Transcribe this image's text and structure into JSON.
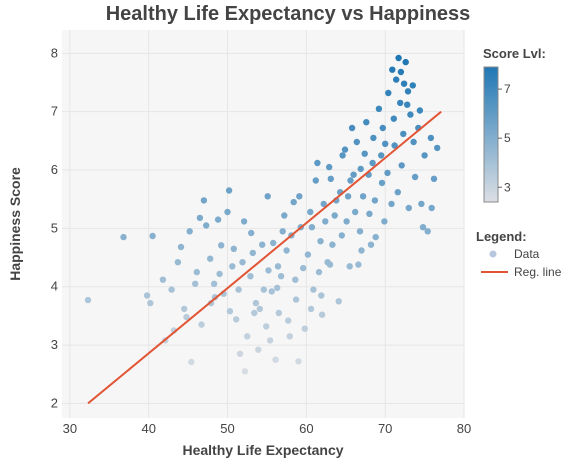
{
  "chart_data": {
    "type": "scatter",
    "title": "Healthy Life Expectancy vs Happiness",
    "xlabel": "Healthy Life Expectancy",
    "ylabel": "Happiness Score",
    "xlim": [
      29,
      80
    ],
    "ylim": [
      1.75,
      8.4
    ],
    "xticks": [
      30,
      40,
      50,
      60,
      70,
      80
    ],
    "yticks": [
      2,
      3,
      4,
      5,
      6,
      7,
      8
    ],
    "grid": true,
    "colorbar": {
      "title": "Score Lvl:",
      "range": [
        2.4,
        7.9
      ],
      "ticks": [
        3,
        5,
        7
      ],
      "colors": [
        "#dcdfe4",
        "#1f77b4"
      ]
    },
    "legend": {
      "title": "Legend:",
      "placement": "right",
      "items": [
        {
          "label": "Data",
          "kind": "marker",
          "color": "#b7c7de"
        },
        {
          "label": "Reg. line",
          "kind": "line",
          "color": "#e15535"
        }
      ]
    },
    "regression_line": {
      "x": [
        32.3,
        77.1
      ],
      "y": [
        2.0,
        7.0
      ],
      "color": "#e15535"
    },
    "series": [
      {
        "name": "Data",
        "points": [
          [
            32.3,
            3.77
          ],
          [
            36.8,
            4.85
          ],
          [
            40.5,
            4.87
          ],
          [
            41.8,
            4.12
          ],
          [
            39.8,
            3.85
          ],
          [
            40.2,
            3.72
          ],
          [
            42.1,
            3.08
          ],
          [
            43.2,
            3.25
          ],
          [
            44.5,
            3.62
          ],
          [
            45.4,
            2.71
          ],
          [
            44.1,
            4.68
          ],
          [
            45.2,
            4.95
          ],
          [
            46.1,
            4.25
          ],
          [
            47.3,
            5.05
          ],
          [
            47.8,
            4.48
          ],
          [
            48.4,
            3.82
          ],
          [
            49.2,
            4.71
          ],
          [
            50.0,
            5.28
          ],
          [
            50.6,
            4.35
          ],
          [
            51.1,
            3.44
          ],
          [
            51.6,
            2.85
          ],
          [
            52.2,
            2.55
          ],
          [
            52.1,
            5.12
          ],
          [
            52.9,
            4.18
          ],
          [
            53.4,
            3.55
          ],
          [
            53.9,
            2.92
          ],
          [
            54.4,
            4.72
          ],
          [
            55.1,
            5.55
          ],
          [
            55.6,
            3.92
          ],
          [
            56.1,
            2.75
          ],
          [
            56.4,
            4.35
          ],
          [
            57.2,
            5.22
          ],
          [
            57.7,
            3.42
          ],
          [
            58.1,
            4.88
          ],
          [
            58.6,
            4.12
          ],
          [
            59.1,
            5.55
          ],
          [
            59.8,
            3.28
          ],
          [
            60.2,
            4.55
          ],
          [
            60.7,
            5.02
          ],
          [
            61.2,
            5.82
          ],
          [
            61.6,
            4.25
          ],
          [
            62.0,
            3.52
          ],
          [
            62.4,
            5.12
          ],
          [
            62.9,
            6.05
          ],
          [
            63.3,
            4.72
          ],
          [
            63.8,
            5.48
          ],
          [
            64.1,
            3.75
          ],
          [
            64.6,
            6.25
          ],
          [
            65.1,
            5.12
          ],
          [
            65.5,
            4.35
          ],
          [
            66.0,
            5.92
          ],
          [
            66.4,
            6.48
          ],
          [
            66.8,
            4.95
          ],
          [
            67.2,
            5.55
          ],
          [
            67.6,
            6.82
          ],
          [
            68.0,
            5.25
          ],
          [
            68.4,
            6.12
          ],
          [
            68.8,
            4.85
          ],
          [
            69.2,
            7.05
          ],
          [
            69.6,
            5.78
          ],
          [
            70.0,
            6.45
          ],
          [
            70.4,
            7.32
          ],
          [
            70.8,
            5.42
          ],
          [
            71.1,
            6.88
          ],
          [
            71.4,
            7.55
          ],
          [
            71.7,
            7.92
          ],
          [
            72.0,
            7.68
          ],
          [
            72.3,
            6.62
          ],
          [
            72.6,
            7.85
          ],
          [
            72.9,
            7.35
          ],
          [
            73.2,
            6.95
          ],
          [
            73.5,
            7.45
          ],
          [
            73.8,
            5.88
          ],
          [
            74.2,
            6.72
          ],
          [
            74.6,
            5.42
          ],
          [
            75.0,
            6.25
          ],
          [
            75.4,
            4.95
          ],
          [
            75.8,
            6.55
          ],
          [
            76.2,
            5.85
          ],
          [
            76.6,
            6.38
          ],
          [
            48.3,
            4.05
          ],
          [
            49.5,
            3.88
          ],
          [
            50.8,
            4.65
          ],
          [
            51.9,
            4.42
          ],
          [
            53.0,
            4.92
          ],
          [
            54.1,
            3.62
          ],
          [
            55.2,
            4.28
          ],
          [
            56.3,
            3.98
          ],
          [
            57.5,
            4.62
          ],
          [
            58.7,
            3.78
          ],
          [
            59.6,
            4.32
          ],
          [
            60.9,
            3.95
          ],
          [
            61.8,
            4.78
          ],
          [
            62.7,
            4.42
          ],
          [
            63.6,
            5.22
          ],
          [
            64.5,
            4.88
          ],
          [
            65.3,
            5.55
          ],
          [
            66.2,
            5.28
          ],
          [
            67.0,
            4.62
          ],
          [
            67.9,
            5.92
          ],
          [
            68.7,
            5.48
          ],
          [
            69.5,
            6.25
          ],
          [
            70.3,
            5.95
          ],
          [
            71.2,
            6.42
          ],
          [
            72.1,
            6.08
          ],
          [
            72.8,
            7.12
          ],
          [
            73.6,
            6.48
          ],
          [
            74.4,
            7.02
          ],
          [
            65.8,
            6.72
          ],
          [
            64.9,
            6.35
          ],
          [
            63.1,
            5.85
          ],
          [
            62.2,
            5.42
          ],
          [
            61.4,
            6.12
          ],
          [
            60.5,
            5.28
          ],
          [
            59.3,
            5.02
          ],
          [
            58.4,
            5.45
          ],
          [
            57.0,
            4.95
          ],
          [
            56.8,
            4.18
          ],
          [
            55.8,
            4.75
          ],
          [
            54.9,
            3.32
          ],
          [
            53.6,
            3.72
          ],
          [
            52.5,
            3.15
          ],
          [
            51.4,
            3.95
          ],
          [
            50.3,
            3.58
          ],
          [
            49.0,
            4.22
          ],
          [
            47.9,
            3.72
          ],
          [
            46.7,
            3.35
          ],
          [
            45.9,
            4.05
          ],
          [
            44.8,
            3.48
          ],
          [
            43.7,
            4.42
          ],
          [
            42.9,
            3.95
          ],
          [
            47.0,
            5.48
          ],
          [
            48.8,
            5.15
          ],
          [
            50.2,
            5.65
          ],
          [
            46.5,
            5.18
          ],
          [
            66.6,
            4.38
          ],
          [
            68.2,
            4.72
          ],
          [
            69.9,
            5.12
          ],
          [
            71.6,
            5.62
          ],
          [
            73.0,
            5.35
          ],
          [
            74.8,
            5.02
          ],
          [
            75.9,
            5.35
          ],
          [
            70.9,
            7.72
          ],
          [
            72.4,
            7.48
          ],
          [
            71.9,
            7.15
          ],
          [
            69.7,
            6.72
          ],
          [
            68.5,
            6.55
          ],
          [
            67.4,
            6.28
          ],
          [
            66.9,
            6.02
          ],
          [
            65.6,
            5.82
          ],
          [
            64.3,
            5.62
          ],
          [
            63.0,
            4.38
          ],
          [
            61.9,
            3.85
          ],
          [
            60.6,
            3.62
          ],
          [
            59.0,
            2.72
          ],
          [
            57.9,
            3.15
          ],
          [
            56.5,
            3.55
          ],
          [
            55.4,
            3.08
          ],
          [
            54.6,
            3.95
          ],
          [
            53.2,
            4.58
          ]
        ]
      }
    ]
  }
}
